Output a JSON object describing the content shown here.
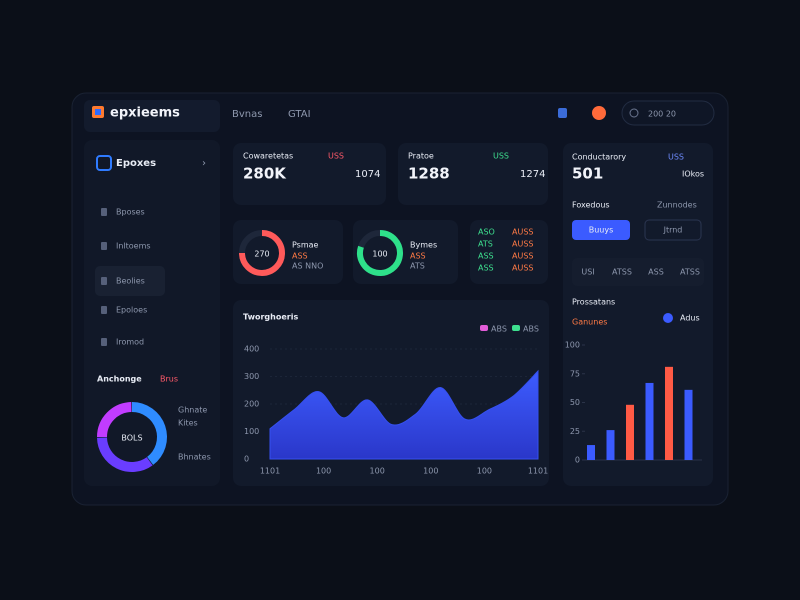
{
  "brand": "epxieems",
  "nav": [
    "Bvnas",
    "GTAI"
  ],
  "search": "200 20",
  "sidebar": {
    "title": "Epoxes",
    "items": [
      "Bposes",
      "Inltoems",
      "Beolies",
      "Epoloes",
      "Iromod"
    ],
    "donut": {
      "title": "Anchonge",
      "tag": "Brus",
      "center": "BOLS",
      "values": [
        40,
        35,
        25
      ],
      "colors": [
        "#2f8cff",
        "#6a3dff",
        "#c23cff"
      ],
      "legend": [
        "Ghnate",
        "Kites",
        "Bhnates"
      ]
    }
  },
  "stats": [
    {
      "label": "Cowaretetas",
      "tag": "USS",
      "value": "280K",
      "side": "1074"
    },
    {
      "label": "Pratoe",
      "tag": "USS",
      "value": "1288",
      "side": "1274"
    }
  ],
  "rings": [
    {
      "value": 75,
      "color": "#ff5a5a",
      "center": "270",
      "title": "Psmae",
      "lines": [
        "ASS",
        "AS NNO"
      ]
    },
    {
      "value": 80,
      "color": "#2ee08a",
      "center": "100",
      "title": "Bymes",
      "lines": [
        "ASS",
        "ATS"
      ]
    }
  ],
  "mini_list": [
    [
      "ASO",
      "AUSS"
    ],
    [
      "ATS",
      "AUSS"
    ],
    [
      "ASS",
      "AUSS"
    ],
    [
      "ASS",
      "AUSS"
    ]
  ],
  "area_chart": {
    "type": "area",
    "title": "Tworghoeris",
    "color": "#3550f0",
    "legend": [
      "ABS",
      "ABS"
    ],
    "legend_colors": [
      "#e25cd8",
      "#3ee08f"
    ],
    "ylim": [
      0,
      400
    ],
    "yticks": [
      0,
      100,
      200,
      300,
      400
    ],
    "grid": true,
    "x_labels": [
      "1101",
      "100",
      "100",
      "100",
      "100",
      "1101"
    ],
    "values": [
      110,
      180,
      245,
      150,
      215,
      125,
      165,
      260,
      145,
      180,
      230,
      320
    ]
  },
  "right_panel": {
    "title": "Conductarory",
    "tag": "USS",
    "value": "501",
    "side": "IOkos",
    "sub": "Foxedous",
    "sub_tag": "Zunnodes",
    "buttons": [
      "Buuys",
      "Jtrnd"
    ],
    "tabs": [
      "USI",
      "ATSS",
      "ASS",
      "ATSS"
    ]
  },
  "bar_chart": {
    "type": "bar",
    "title": "Prossatans",
    "tag": "Ganunes",
    "legend": "Adus",
    "ylim": [
      0,
      100
    ],
    "yticks": [
      0,
      25,
      50,
      75,
      100
    ],
    "values": [
      13,
      26,
      48,
      67,
      81,
      61
    ],
    "colors": [
      "#3b5bff",
      "#3b5bff",
      "#ff5a45",
      "#3b5bff",
      "#ff5a45",
      "#3b5bff"
    ]
  }
}
